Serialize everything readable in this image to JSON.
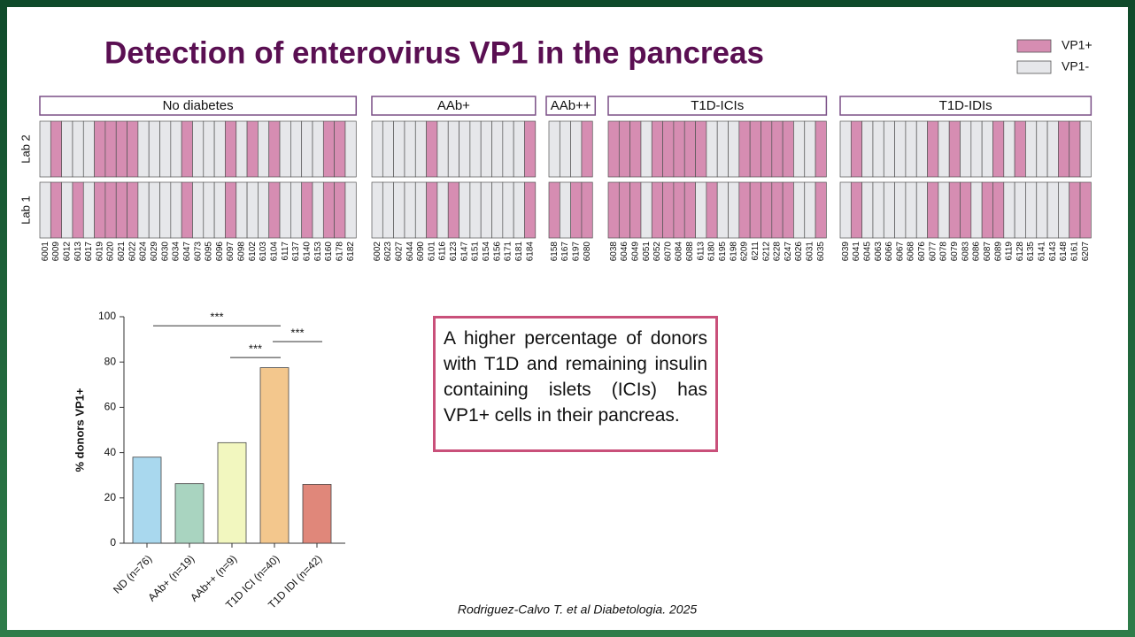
{
  "title": "Detection of enterovirus VP1 in the pancreas",
  "legend": [
    {
      "label": "VP1+",
      "color": "#d68db2"
    },
    {
      "label": "VP1-",
      "color": "#e6e7ea"
    }
  ],
  "heatmap": {
    "row_labels": [
      "Lab 2",
      "Lab 1"
    ],
    "groups": [
      {
        "name": "No diabetes",
        "donors": [
          "6001",
          "6009",
          "6012",
          "6013",
          "6017",
          "6019",
          "6020",
          "6021",
          "6022",
          "6024",
          "6029",
          "6030",
          "6034",
          "6047",
          "6073",
          "6095",
          "6096",
          "6097",
          "6098",
          "6102",
          "6103",
          "6104",
          "6117",
          "6137",
          "6140",
          "6153",
          "6160",
          "6178",
          "6182"
        ],
        "rows": [
          [
            0,
            1,
            0,
            0,
            0,
            1,
            1,
            1,
            1,
            0,
            0,
            0,
            0,
            1,
            0,
            0,
            0,
            1,
            0,
            1,
            0,
            1,
            0,
            0,
            0,
            0,
            1,
            1,
            0
          ],
          [
            0,
            1,
            0,
            1,
            0,
            1,
            1,
            1,
            1,
            0,
            0,
            0,
            0,
            1,
            0,
            0,
            0,
            1,
            0,
            0,
            0,
            1,
            0,
            0,
            1,
            0,
            1,
            1,
            0
          ]
        ]
      },
      {
        "name": "AAb+",
        "donors": [
          "6002",
          "6023",
          "6027",
          "6044",
          "6090",
          "6101",
          "6116",
          "6123",
          "6147",
          "6151",
          "6154",
          "6156",
          "6171",
          "6181",
          "6184"
        ],
        "rows": [
          [
            0,
            0,
            0,
            0,
            0,
            1,
            0,
            0,
            0,
            0,
            0,
            0,
            0,
            0,
            1
          ],
          [
            0,
            0,
            0,
            0,
            0,
            1,
            0,
            1,
            0,
            0,
            0,
            0,
            0,
            0,
            1
          ]
        ]
      },
      {
        "name": "AAb++",
        "donors": [
          "6158",
          "6167",
          "6197",
          "6080"
        ],
        "rows": [
          [
            0,
            0,
            0,
            1
          ],
          [
            1,
            0,
            1,
            1
          ]
        ]
      },
      {
        "name": "T1D-ICIs",
        "donors": [
          "6038",
          "6046",
          "6049",
          "6051",
          "6052",
          "6070",
          "6084",
          "6088",
          "6113",
          "6180",
          "6195",
          "6198",
          "6209",
          "6211",
          "6212",
          "6228",
          "6247",
          "6026",
          "6031",
          "6035"
        ],
        "rows": [
          [
            1,
            1,
            1,
            0,
            1,
            1,
            1,
            1,
            1,
            0,
            0,
            0,
            1,
            1,
            1,
            1,
            1,
            0,
            0,
            1
          ],
          [
            1,
            1,
            1,
            0,
            1,
            1,
            1,
            1,
            0,
            1,
            0,
            0,
            1,
            1,
            1,
            1,
            1,
            0,
            0,
            1
          ]
        ]
      },
      {
        "name": "T1D-IDIs",
        "donors": [
          "6039",
          "6041",
          "6045",
          "6063",
          "6066",
          "6067",
          "6068",
          "6076",
          "6077",
          "6078",
          "6079",
          "6083",
          "6086",
          "6087",
          "6089",
          "6119",
          "6128",
          "6135",
          "6141",
          "6143",
          "6148",
          "6161",
          "6207"
        ],
        "rows": [
          [
            0,
            1,
            0,
            0,
            0,
            0,
            0,
            0,
            1,
            0,
            1,
            0,
            0,
            0,
            1,
            0,
            1,
            0,
            0,
            0,
            1,
            1,
            0
          ],
          [
            0,
            1,
            0,
            0,
            0,
            0,
            0,
            0,
            1,
            0,
            1,
            1,
            0,
            1,
            1,
            0,
            0,
            0,
            0,
            0,
            0,
            1,
            1
          ]
        ]
      }
    ]
  },
  "chart_data": {
    "type": "bar",
    "y_label": "% donors VP1+",
    "categories": [
      "ND (n=76)",
      "AAb+ (n=19)",
      "AAb++ (n=9)",
      "T1D ICI (n=40)",
      "T1D IDI (n=42)"
    ],
    "values": [
      38,
      26.3,
      44.4,
      77.5,
      26
    ],
    "colors": [
      "#a9d8ee",
      "#a9d4c0",
      "#f2f7bf",
      "#f3c78d",
      "#e0877a"
    ],
    "ylim": [
      0,
      100
    ],
    "yticks": [
      0,
      20,
      40,
      60,
      80,
      100
    ],
    "significance": [
      {
        "from": 0,
        "to": 3,
        "y": 96,
        "label": "***"
      },
      {
        "from": 2,
        "to": 3,
        "y": 82,
        "label": "***"
      },
      {
        "from": 3,
        "to": 4,
        "y": 89,
        "label": "***"
      }
    ]
  },
  "textbox": "A higher percentage of donors with T1D and remaining insulin containing islets (ICIs) has VP1+ cells in their pancreas.",
  "citation": "Rodriguez-Calvo T. et al Diabetologia. 2025"
}
